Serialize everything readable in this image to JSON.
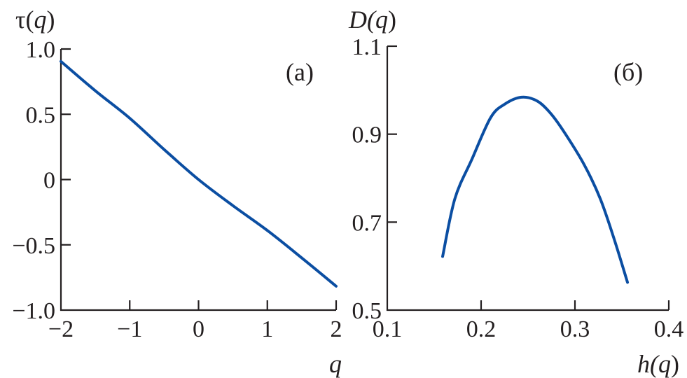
{
  "chart_data": [
    {
      "type": "line",
      "panel_label": "(а)",
      "ylabel_main": "τ(",
      "ylabel_var": "q",
      "ylabel_close": ")",
      "xlabel": "q",
      "xlim": [
        -2,
        2
      ],
      "ylim": [
        -1.0,
        1.0
      ],
      "xticks": [
        -2,
        -1,
        0,
        1,
        2
      ],
      "xtick_labels": [
        "−2",
        "−1",
        "0",
        "1",
        "2"
      ],
      "yticks": [
        -1.0,
        -0.5,
        0,
        0.5,
        1.0
      ],
      "ytick_labels": [
        "−1.0",
        "−0.5",
        "0",
        "0.5",
        "1.0"
      ],
      "grid": false,
      "color": "#0b4ea2",
      "x": [
        -2,
        -1.5,
        -1,
        -0.5,
        0,
        0.5,
        1,
        1.5,
        2
      ],
      "y": [
        0.905,
        0.68,
        0.47,
        0.23,
        0.0,
        -0.2,
        -0.39,
        -0.6,
        -0.817
      ]
    },
    {
      "type": "line",
      "panel_label": "(б)",
      "ylabel_main": "D(",
      "ylabel_var": "q",
      "ylabel_close": ")",
      "xlabel_main": "h(",
      "xlabel_var": "q",
      "xlabel_close": ")",
      "xlim": [
        0.1,
        0.4
      ],
      "ylim": [
        0.5,
        1.1
      ],
      "xticks": [
        0.1,
        0.2,
        0.3,
        0.4
      ],
      "xtick_labels": [
        "0.1",
        "0.2",
        "0.3",
        "0.4"
      ],
      "yticks": [
        0.5,
        0.7,
        0.9,
        1.1
      ],
      "ytick_labels": [
        "0.5",
        "0.7",
        "0.9",
        "1.1"
      ],
      "grid": false,
      "color": "#0b4ea2",
      "x": [
        0.159,
        0.172,
        0.19,
        0.21,
        0.225,
        0.243,
        0.26,
        0.275,
        0.29,
        0.31,
        0.327,
        0.342,
        0.356
      ],
      "y": [
        0.622,
        0.753,
        0.842,
        0.937,
        0.968,
        0.984,
        0.975,
        0.945,
        0.9,
        0.83,
        0.753,
        0.66,
        0.563
      ]
    }
  ]
}
